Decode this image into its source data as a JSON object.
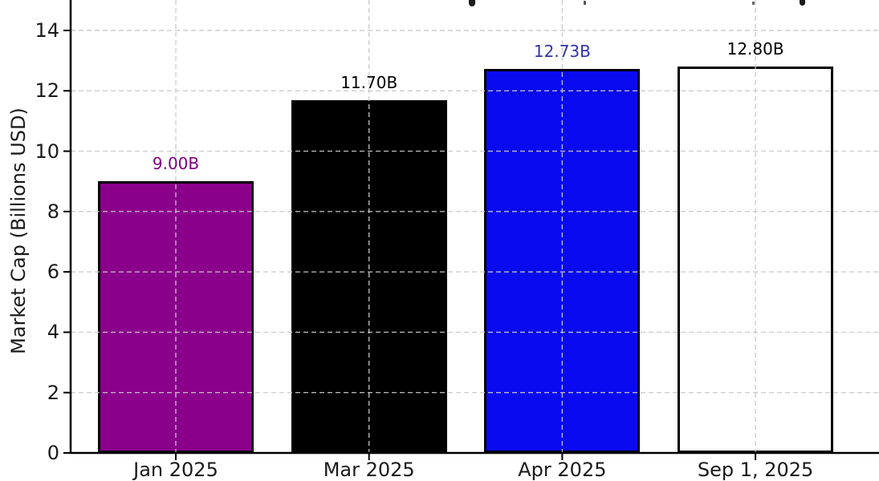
{
  "chart_data": {
    "type": "bar",
    "ylabel": "Market Cap (Billions USD)",
    "categories": [
      "Jan 2025",
      "Mar 2025",
      "Apr 2025",
      "Sep 1, 2025"
    ],
    "values": [
      9.0,
      11.7,
      12.73,
      12.8
    ],
    "bar_labels": [
      "9.00B",
      "11.70B",
      "12.73B",
      "12.80B"
    ],
    "bar_colors": [
      "#8B008B",
      "#000000",
      "#0A0AF0",
      "#FFFFFF"
    ],
    "bar_label_colors": [
      "#800080",
      "#000000",
      "#3333AA",
      "#000000"
    ],
    "bar_edge_color": "#000000",
    "yticks": [
      0,
      2,
      4,
      6,
      8,
      10,
      12,
      14
    ],
    "ylim": [
      0,
      15
    ],
    "grid": true,
    "grid_style": "dashed",
    "grid_color": "#c9c9c9",
    "axis_color": "#000000",
    "background_color": "#ffffff",
    "legend": false,
    "title_cropped": true
  }
}
